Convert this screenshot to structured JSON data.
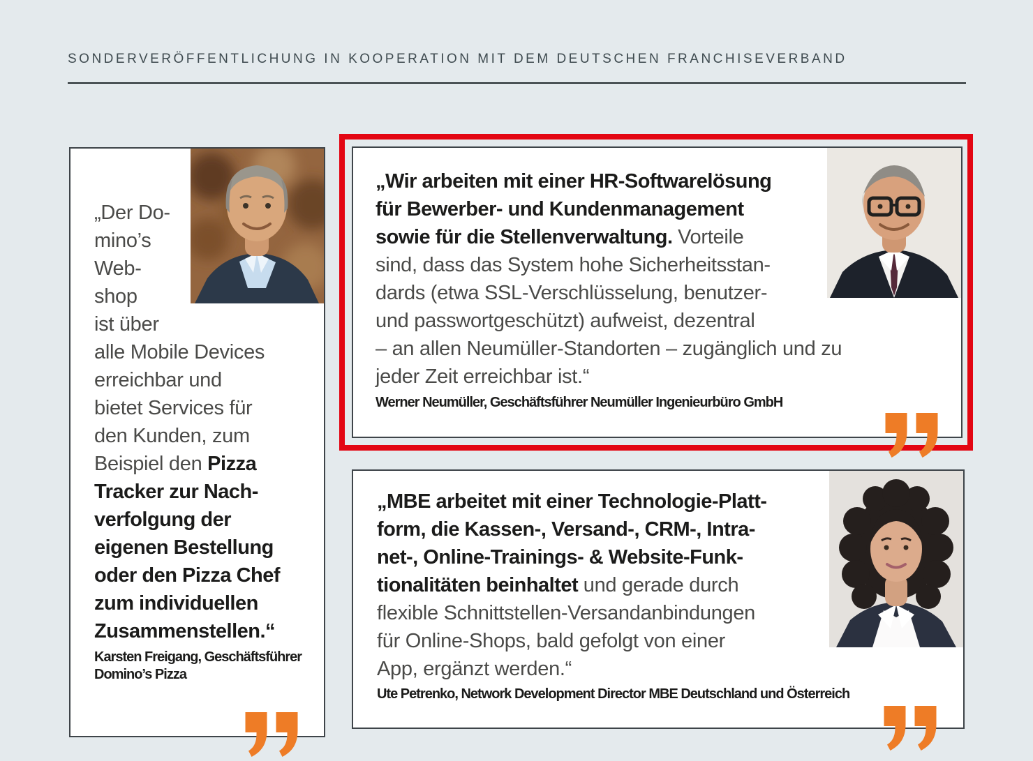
{
  "page": {
    "background": "#e4eaed"
  },
  "header": {
    "kicker": "SONDERVERÖFFENTLICHUNG IN KOOPERATION MIT DEM DEUTSCHEN FRANCHISEVERBAND"
  },
  "colors": {
    "accent_orange": "#ee7c26",
    "highlight_red": "#e30613",
    "box_border": "#3e4449",
    "page_background": "#e4eaed"
  },
  "cards": [
    {
      "id": "dominos",
      "highlighted": false,
      "photo_alt": "Karsten Freigang Portrait",
      "runs": [
        {
          "b": false,
          "t": "„Der Do-\nmino’s\nWeb-\nshop\nist über\nalle Mobile Devices\nerreichbar und\nbietet Services für\nden Kunden, zum\nBeispiel den "
        },
        {
          "b": true,
          "t": "Pizza\nTracker zur Nach-\nverfolgung der\neigenen Bestellung\noder den Pizza Chef\nzum individuellen\nZusammenstellen.“"
        }
      ],
      "attribution": "Karsten Freigang, Geschäftsführer\nDomino’s Pizza"
    },
    {
      "id": "neumueller",
      "highlighted": true,
      "photo_alt": "Werner Neumüller Portrait",
      "runs": [
        {
          "b": true,
          "t": "„Wir arbeiten mit einer HR-Softwarelösung\nfür Bewerber- und Kundenmanagement\nsowie für die Stellenverwaltung. "
        },
        {
          "b": false,
          "t": "Vorteile\nsind, dass das System hohe Sicherheitsstan-\ndards (etwa SSL-Verschlüsselung, benutzer-\nund passwortgeschützt) aufweist, dezentral\n– an allen Neumüller-Standorten – zugänglich und zu\njeder Zeit erreichbar ist.“"
        }
      ],
      "attribution": "Werner Neumüller, Geschäftsführer Neumüller Ingenieurbüro GmbH"
    },
    {
      "id": "mbe",
      "highlighted": false,
      "photo_alt": "Ute Petrenko Portrait",
      "runs": [
        {
          "b": true,
          "t": "„MBE arbeitet mit einer Technologie-Platt-\nform, die Kassen-, Versand-, CRM-, Intra-\nnet-, Online-Trainings- & Website-Funk-\ntionalitäten beinhaltet "
        },
        {
          "b": false,
          "t": "und gerade durch\nflexible Schnittstellen-Versandanbindungen\nfür Online-Shops, bald gefolgt von einer\nApp, ergänzt werden.“"
        }
      ],
      "attribution": "Ute Petrenko, Network Development Director MBE Deutschland und Österreich"
    }
  ]
}
